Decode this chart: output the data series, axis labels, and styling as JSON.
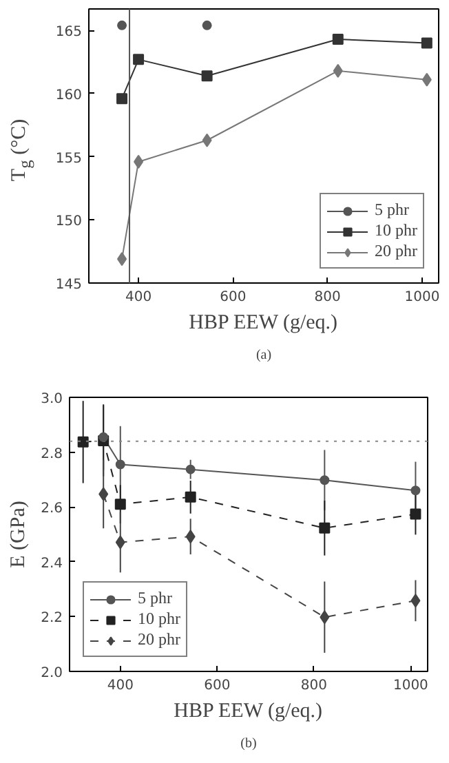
{
  "chart_data": [
    {
      "type": "line",
      "xlabel": "HBP EEW (g/eq.)",
      "ylabel": "T$_{g}$ (°C)",
      "annotations": [
        "(a)"
      ],
      "x": [
        365,
        400,
        545,
        822,
        1010
      ],
      "xlim": [
        295,
        1035
      ],
      "xticks": [
        400,
        600,
        800,
        1000
      ],
      "ylim": [
        145,
        166.7
      ],
      "yticks": [
        145,
        150,
        155,
        160,
        165
      ],
      "grid": false,
      "legend": "bottom right",
      "ref_lines": [
        {
          "axis": "x",
          "value": 381,
          "color": "#555555",
          "line_style": "solid"
        }
      ],
      "series": [
        {
          "name": "5 phr",
          "color": "#555555",
          "marker": "circle",
          "line_style": "solid",
          "values": [
            165.4,
            null,
            165.4,
            null,
            null
          ]
        },
        {
          "name": "10 phr",
          "color": "#333333",
          "marker": "square",
          "line_style": "solid",
          "values": [
            159.6,
            162.7,
            161.4,
            164.3,
            164.0
          ]
        },
        {
          "name": "20 phr",
          "color": "#777777",
          "marker": "diamond",
          "line_style": "solid",
          "values": [
            146.9,
            154.6,
            156.3,
            161.8,
            161.1
          ]
        }
      ]
    },
    {
      "type": "line",
      "xlabel": "HBP EEW (g/eq.)",
      "ylabel": "E (GPa)",
      "annotations": [
        "(b)"
      ],
      "xlim": [
        295,
        1035
      ],
      "xticks": [
        400,
        600,
        800,
        1000
      ],
      "ylim": [
        2.0,
        3.0
      ],
      "yticks": [
        {
          "value": 2.0,
          "label": "2.0"
        },
        2.2,
        2.4,
        2.6,
        2.8,
        {
          "value": 3.0,
          "label": "3.0"
        }
      ],
      "grid": false,
      "legend": "bottom left",
      "ref_lines": [
        {
          "axis": "y",
          "value": 2.84,
          "color": "#888888",
          "line_style": "dotted"
        }
      ],
      "series": [
        {
          "name": "5 phr",
          "color": "#555555",
          "marker": "circle",
          "line_style": "solid",
          "x": [
            365,
            400,
            545,
            822,
            1010
          ],
          "values": [
            2.855,
            2.755,
            2.737,
            2.698,
            2.66
          ],
          "errors": [
            0.12,
            0.14,
            0.035,
            0.11,
            0.105
          ]
        },
        {
          "name": "10 phr",
          "color": "#222222",
          "marker": "square",
          "line_style": "dashed",
          "x": [
            323,
            365,
            400,
            545,
            822,
            1010
          ],
          "values": [
            2.837,
            2.842,
            2.61,
            2.636,
            2.523,
            2.574
          ],
          "errors": [
            0.15,
            0.13,
            0.07,
            0.06,
            0.1,
            0.075
          ]
        },
        {
          "name": "20 phr",
          "color": "#444444",
          "marker": "diamond",
          "line_style": "dashed",
          "x": [
            365,
            400,
            545,
            822,
            1010
          ],
          "values": [
            2.647,
            2.471,
            2.492,
            2.198,
            2.258
          ],
          "errors": [
            0.125,
            0.11,
            0.065,
            0.13,
            0.075
          ]
        }
      ]
    }
  ]
}
